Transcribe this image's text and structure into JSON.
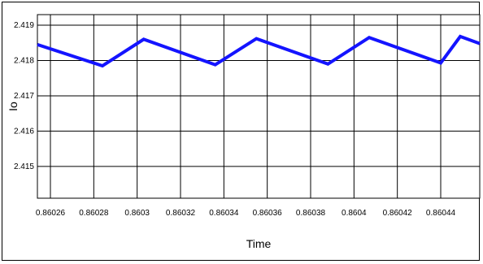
{
  "chart_data": {
    "type": "line",
    "title": "",
    "xlabel": "Time",
    "ylabel": "Io",
    "xlim": [
      0.860254,
      0.860458
    ],
    "ylim": [
      2.4141,
      2.4193
    ],
    "x_ticks": [
      0.86026,
      0.86028,
      0.8603,
      0.86032,
      0.86034,
      0.86036,
      0.86038,
      0.8604,
      0.86042,
      0.86044
    ],
    "x_tick_labels": [
      "0.86026",
      "0.86028",
      "0.8603",
      "0.86032",
      "0.86034",
      "0.86036",
      "0.86038",
      "0.8604",
      "0.86042",
      "0.86044"
    ],
    "y_ticks": [
      2.415,
      2.416,
      2.417,
      2.418,
      2.419
    ],
    "y_tick_labels": [
      "2.415",
      "2.416",
      "2.417",
      "2.418",
      "2.419"
    ],
    "grid": true,
    "series": [
      {
        "color": "#1414ff",
        "x": [
          0.860254,
          0.860284,
          0.860303,
          0.860336,
          0.860355,
          0.860388,
          0.860407,
          0.86044,
          0.860449,
          0.860458
        ],
        "y": [
          2.41845,
          2.41785,
          2.4186,
          2.41788,
          2.41862,
          2.4179,
          2.41865,
          2.41793,
          2.41868,
          2.41848
        ]
      }
    ]
  }
}
